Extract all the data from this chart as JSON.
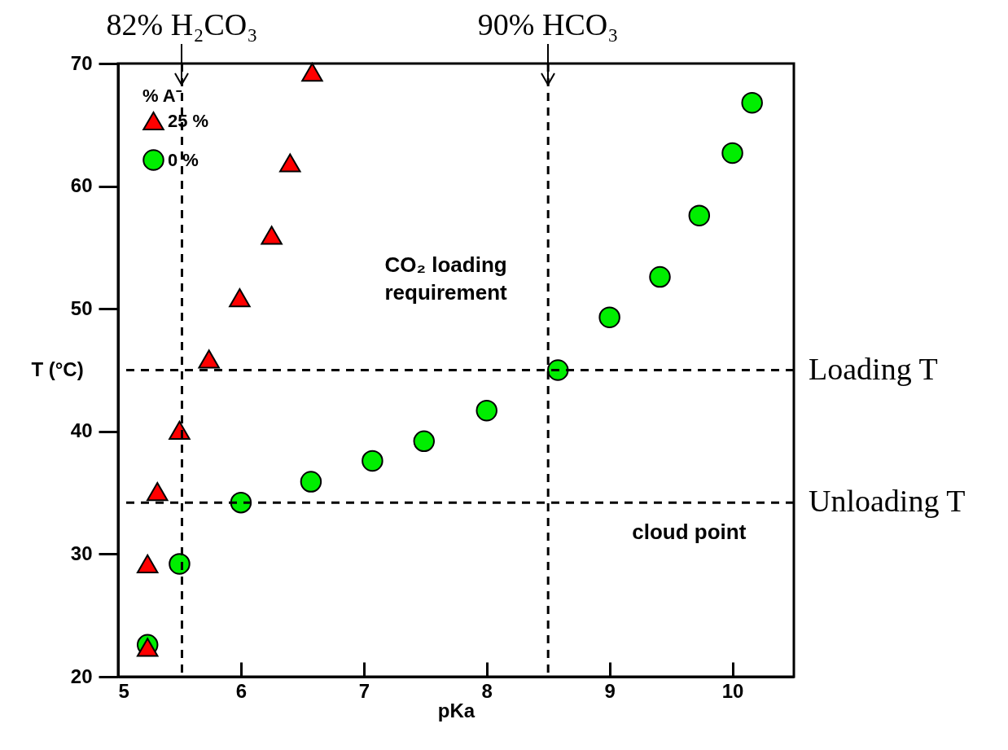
{
  "chart_data": {
    "type": "scatter",
    "xlabel": "pKa",
    "ylabel": "T (°C)",
    "legend_title": "% A⁻",
    "legend": "top left",
    "xlim": [
      5,
      10.5
    ],
    "ylim": [
      20,
      70
    ],
    "xticks": [
      5,
      6,
      7,
      8,
      9,
      10
    ],
    "yticks": [
      20,
      30,
      40,
      50,
      60,
      70
    ],
    "grid": false,
    "series": [
      {
        "name": "25 %",
        "color": "#ff0000",
        "marker": "triangle",
        "x": [
          5.24,
          5.24,
          5.32,
          5.5,
          5.74,
          5.99,
          6.25,
          6.4,
          6.58
        ],
        "values": [
          22.4,
          29.2,
          35.1,
          40.1,
          45.9,
          50.9,
          56.0,
          61.9,
          69.3
        ]
      },
      {
        "name": "0 %",
        "color": "#00ee00",
        "marker": "circle",
        "x": [
          5.24,
          5.5,
          6,
          6.57,
          7.07,
          7.49,
          8,
          8.58,
          9,
          9.41,
          9.73,
          10,
          10.16
        ],
        "values": [
          22.6,
          29.2,
          34.2,
          35.9,
          37.6,
          39.2,
          41.7,
          45.0,
          49.3,
          52.6,
          57.6,
          62.7,
          66.8
        ]
      }
    ],
    "ref_lines": [
      {
        "axis": "y",
        "value": 45,
        "label": "Loading T",
        "line_style": "dashed"
      },
      {
        "axis": "y",
        "value": 34.2,
        "label": "Unloading T",
        "line_style": "dashed"
      },
      {
        "axis": "x",
        "value": 5.52,
        "label": "82% H₂CO₃",
        "line_style": "dashed"
      },
      {
        "axis": "x",
        "value": 8.5,
        "label": "90% HCO₃",
        "line_style": "dashed"
      }
    ],
    "annotations": [
      "CO₂ loading\nrequirement",
      "cloud point"
    ]
  }
}
